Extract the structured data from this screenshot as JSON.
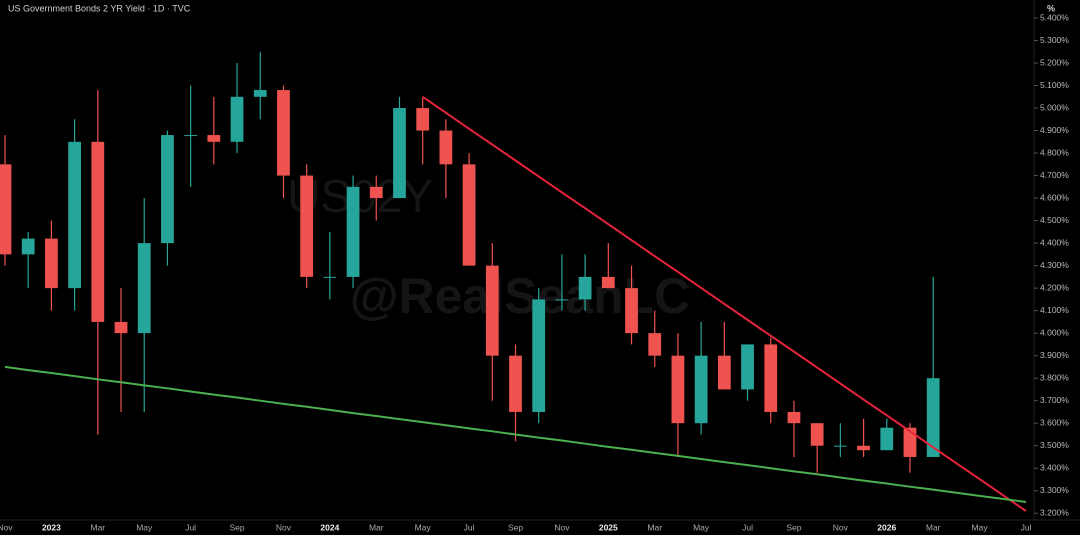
{
  "chart_data": {
    "type": "candlestick",
    "title": "US Government Bonds 2 YR Yield · 1D · TVC",
    "unit": "%",
    "watermark": [
      "US02Y",
      "@RealSeanLC"
    ],
    "up_color": "#26a69a",
    "down_color": "#ef5350",
    "categories": [
      "Nov",
      null,
      "2023",
      null,
      "Mar",
      null,
      "May",
      null,
      "Jul",
      null,
      "Sep",
      null,
      "Nov",
      null,
      "2024",
      null,
      "Mar",
      null,
      "May",
      null,
      "Jul",
      null,
      "Sep",
      null,
      "Nov",
      null,
      "2025",
      null,
      "Mar",
      null,
      "May",
      null,
      "Jul",
      null,
      "Sep",
      null,
      "Nov",
      null,
      "2026",
      null,
      "Mar",
      null,
      "May",
      null,
      "Jul"
    ],
    "open": [
      4.75,
      4.35,
      4.42,
      4.2,
      4.85,
      4.05,
      4.0,
      4.4,
      4.88,
      4.88,
      4.85,
      5.05,
      5.08,
      4.7,
      4.25,
      4.25,
      4.65,
      4.6,
      5.0,
      4.9,
      4.75,
      4.3,
      3.9,
      3.65,
      4.15,
      4.15,
      4.25,
      4.2,
      4.0,
      3.9,
      3.6,
      3.9,
      3.75,
      3.95,
      3.65,
      3.6,
      3.5,
      3.5,
      3.48,
      3.58,
      3.45,
      null,
      null,
      null,
      null
    ],
    "high": [
      4.88,
      4.45,
      4.5,
      4.95,
      5.08,
      4.2,
      4.6,
      4.9,
      5.1,
      5.05,
      5.2,
      5.25,
      5.1,
      4.75,
      4.45,
      4.7,
      4.7,
      5.05,
      5.05,
      4.95,
      4.8,
      4.4,
      3.95,
      4.2,
      4.35,
      4.35,
      4.4,
      4.3,
      4.1,
      4.0,
      4.05,
      4.05,
      3.95,
      3.98,
      3.7,
      3.6,
      3.6,
      3.62,
      3.62,
      3.6,
      4.25,
      null,
      null,
      null,
      null
    ],
    "low": [
      4.3,
      4.2,
      4.1,
      4.1,
      3.55,
      3.65,
      3.65,
      4.3,
      4.65,
      4.75,
      4.8,
      4.95,
      4.6,
      4.2,
      4.15,
      4.2,
      4.5,
      4.6,
      4.75,
      4.6,
      4.3,
      3.7,
      3.52,
      3.6,
      4.1,
      4.1,
      4.2,
      3.95,
      3.85,
      3.45,
      3.55,
      3.75,
      3.7,
      3.6,
      3.45,
      3.38,
      3.45,
      3.45,
      3.48,
      3.38,
      3.45,
      null,
      null,
      null,
      null
    ],
    "close": [
      4.35,
      4.42,
      4.2,
      4.85,
      4.05,
      4.0,
      4.4,
      4.88,
      4.88,
      4.85,
      5.05,
      5.08,
      4.7,
      4.25,
      4.25,
      4.65,
      4.6,
      5.0,
      4.9,
      4.75,
      4.3,
      3.9,
      3.65,
      4.15,
      4.15,
      4.25,
      4.2,
      4.0,
      3.9,
      3.6,
      3.9,
      3.75,
      3.95,
      3.65,
      3.6,
      3.5,
      3.5,
      3.48,
      3.58,
      3.45,
      3.8,
      null,
      null,
      null,
      null
    ],
    "trendlines": [
      {
        "color": "#e8233c",
        "values": [
          null,
          null,
          null,
          null,
          null,
          null,
          null,
          null,
          null,
          null,
          null,
          null,
          null,
          null,
          null,
          null,
          null,
          null,
          5.05,
          4.979,
          4.908,
          4.838,
          4.767,
          4.696,
          4.625,
          4.555,
          4.484,
          4.413,
          4.342,
          4.272,
          4.201,
          4.13,
          4.059,
          3.988,
          3.918,
          3.847,
          3.776,
          3.705,
          3.635,
          3.564,
          3.493,
          3.422,
          3.352,
          3.281,
          3.21
        ]
      },
      {
        "color": "#4caf50",
        "values": [
          3.85,
          3.836,
          3.823,
          3.809,
          3.795,
          3.782,
          3.768,
          3.755,
          3.741,
          3.727,
          3.714,
          3.7,
          3.686,
          3.673,
          3.659,
          3.645,
          3.632,
          3.618,
          3.605,
          3.591,
          3.577,
          3.564,
          3.55,
          3.536,
          3.523,
          3.509,
          3.495,
          3.482,
          3.468,
          3.455,
          3.441,
          3.427,
          3.414,
          3.4,
          3.386,
          3.373,
          3.359,
          3.345,
          3.332,
          3.318,
          3.305,
          3.291,
          3.277,
          3.264,
          3.25
        ]
      }
    ],
    "ylim": [
      3.17,
      5.48
    ],
    "yticks": [
      {
        "value": 3.2,
        "label": "3.200%"
      },
      {
        "value": 3.3,
        "label": "3.300%"
      },
      {
        "value": 3.4,
        "label": "3.400%"
      },
      {
        "value": 3.5,
        "label": "3.500%"
      },
      {
        "value": 3.6,
        "label": "3.600%"
      },
      {
        "value": 3.7,
        "label": "3.700%"
      },
      {
        "value": 3.8,
        "label": "3.800%"
      },
      {
        "value": 3.9,
        "label": "3.900%"
      },
      {
        "value": 4.0,
        "label": "4.000%"
      },
      {
        "value": 4.1,
        "label": "4.100%"
      },
      {
        "value": 4.2,
        "label": "4.200%"
      },
      {
        "value": 4.3,
        "label": "4.300%"
      },
      {
        "value": 4.4,
        "label": "4.400%"
      },
      {
        "value": 4.5,
        "label": "4.500%"
      },
      {
        "value": 4.6,
        "label": "4.600%"
      },
      {
        "value": 4.7,
        "label": "4.700%"
      },
      {
        "value": 4.8,
        "label": "4.800%"
      },
      {
        "value": 4.9,
        "label": "4.900%"
      },
      {
        "value": 5.0,
        "label": "5.000%"
      },
      {
        "value": 5.1,
        "label": "5.100%"
      },
      {
        "value": 5.2,
        "label": "5.200%"
      },
      {
        "value": 5.3,
        "label": "5.300%"
      },
      {
        "value": 5.4,
        "label": "5.400%"
      }
    ]
  }
}
